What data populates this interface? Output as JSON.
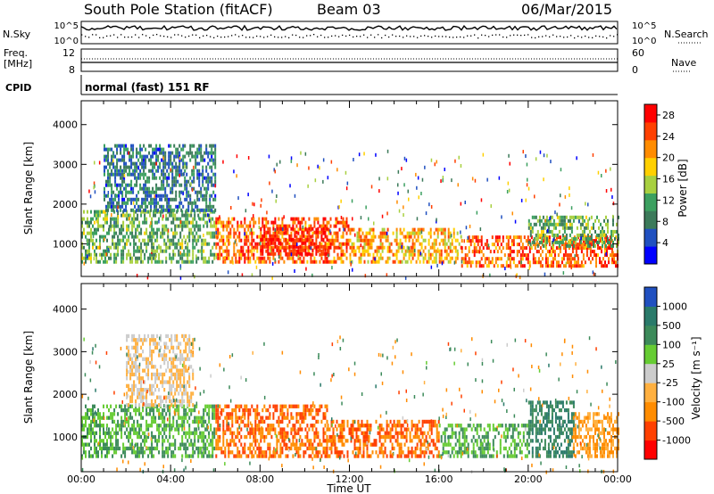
{
  "header": {
    "station": "South Pole Station (fitACF)",
    "beam": "Beam 03",
    "date": "06/Mar/2015"
  },
  "strips": {
    "nsky_label": "N.Sky",
    "nsky_ticks": [
      "10^5",
      "10^0"
    ],
    "nsearch_label": "N.Search",
    "nsearch_ticks": [
      "10^5",
      "10^0"
    ],
    "freq_label_1": "Freq.",
    "freq_label_2": "[MHz]",
    "freq_ticks": [
      "12",
      "8"
    ],
    "nave_label": "Nave",
    "nave_ticks": [
      "60",
      "0"
    ],
    "cpid_label": "CPID",
    "cpid_value": "normal (fast) 151 RF"
  },
  "colors": {
    "power_scale": [
      "#0000ff",
      "#2050c0",
      "#3c7a5a",
      "#3ca060",
      "#a8d040",
      "#ffd000",
      "#ff8c00",
      "#ff4000",
      "#ff0000"
    ],
    "velocity_scale": [
      "#ff0000",
      "#ff4000",
      "#ff8c00",
      "#ffb040",
      "#cccccc",
      "#66cc33",
      "#3c8a5a",
      "#2a7a6a",
      "#2050c0"
    ]
  },
  "chart_data": [
    {
      "type": "heatmap",
      "title": "",
      "xlabel": "Time UT",
      "ylabel": "Slant Range [km]",
      "x_ticks": [
        "00:00",
        "04:00",
        "08:00",
        "12:00",
        "16:00",
        "20:00",
        "00:00"
      ],
      "xlim_hours": [
        0,
        24
      ],
      "y_ticks": [
        1000,
        2000,
        3000,
        4000
      ],
      "ylim": [
        180,
        4600
      ],
      "colorbar": {
        "label": "Power [dB]",
        "ticks": [
          4,
          8,
          12,
          16,
          20,
          24,
          28
        ],
        "range": [
          0,
          30
        ]
      },
      "backscatter_bands": [
        {
          "t_start": 0,
          "t_end": 6,
          "r_low": 500,
          "r_high": 1800,
          "level": 12
        },
        {
          "t_start": 1,
          "t_end": 6,
          "r_low": 1800,
          "r_high": 3500,
          "level": 8
        },
        {
          "t_start": 6,
          "t_end": 12,
          "r_low": 500,
          "r_high": 1600,
          "level": 24
        },
        {
          "t_start": 8,
          "t_end": 11,
          "r_low": 700,
          "r_high": 1400,
          "level": 28
        },
        {
          "t_start": 12,
          "t_end": 17,
          "r_low": 500,
          "r_high": 1400,
          "level": 20
        },
        {
          "t_start": 17,
          "t_end": 24,
          "r_low": 400,
          "r_high": 1200,
          "level": 24
        },
        {
          "t_start": 20,
          "t_end": 24,
          "r_low": 900,
          "r_high": 1700,
          "level": 12
        }
      ]
    },
    {
      "type": "heatmap",
      "title": "",
      "xlabel": "Time UT",
      "ylabel": "Slant Range [km]",
      "x_ticks": [
        "00:00",
        "04:00",
        "08:00",
        "12:00",
        "16:00",
        "20:00",
        "00:00"
      ],
      "xlim_hours": [
        0,
        24
      ],
      "y_ticks": [
        1000,
        2000,
        3000,
        4000
      ],
      "ylim": [
        180,
        4600
      ],
      "colorbar": {
        "label": "Velocity [m s⁻¹]",
        "ticks": [
          1000,
          500,
          100,
          25,
          -25,
          -100,
          -500,
          -1000
        ],
        "range": [
          -1000,
          1000
        ]
      },
      "backscatter_bands": [
        {
          "t_start": 0,
          "t_end": 6,
          "r_low": 500,
          "r_high": 1700,
          "level": 100
        },
        {
          "t_start": 2,
          "t_end": 5,
          "r_low": 1700,
          "r_high": 3400,
          "level": -25
        },
        {
          "t_start": 6,
          "t_end": 11,
          "r_low": 500,
          "r_high": 1700,
          "level": -500
        },
        {
          "t_start": 11,
          "t_end": 16,
          "r_low": 500,
          "r_high": 1400,
          "level": -500
        },
        {
          "t_start": 16,
          "t_end": 20,
          "r_low": 500,
          "r_high": 1300,
          "level": 100
        },
        {
          "t_start": 20,
          "t_end": 22,
          "r_low": 500,
          "r_high": 1800,
          "level": 500
        },
        {
          "t_start": 22,
          "t_end": 24,
          "r_low": 500,
          "r_high": 1500,
          "level": -100
        }
      ]
    }
  ]
}
